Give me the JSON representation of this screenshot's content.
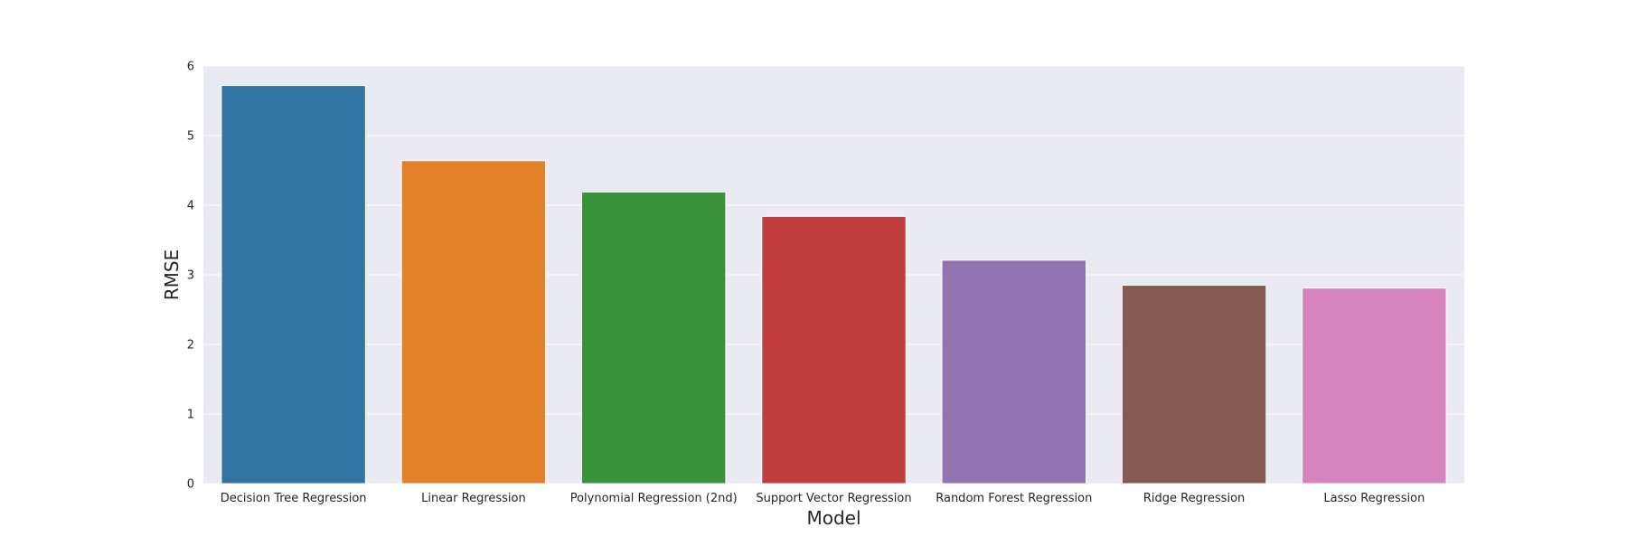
{
  "chart_data": {
    "type": "bar",
    "title": "",
    "xlabel": "Model",
    "ylabel": "RMSE",
    "categories": [
      "Decision Tree Regression",
      "Linear Regression",
      "Polynomial Regression (2nd)",
      "Support Vector Regression",
      "Random Forest Regression",
      "Ridge Regression",
      "Lasso Regression"
    ],
    "values": [
      5.72,
      4.64,
      4.19,
      3.84,
      3.21,
      2.85,
      2.81
    ],
    "colors": [
      "#3274a1",
      "#e1812c",
      "#3a923a",
      "#c03d3e",
      "#9372b2",
      "#845b53",
      "#d684bd"
    ],
    "ylim": [
      0,
      6
    ],
    "yticks": [
      0,
      1,
      2,
      3,
      4,
      5,
      6
    ],
    "grid": true,
    "legend": "none",
    "style": {
      "plot_background": "#eaeaf2",
      "grid_color": "#ffffff",
      "text_color": "#262626"
    }
  }
}
